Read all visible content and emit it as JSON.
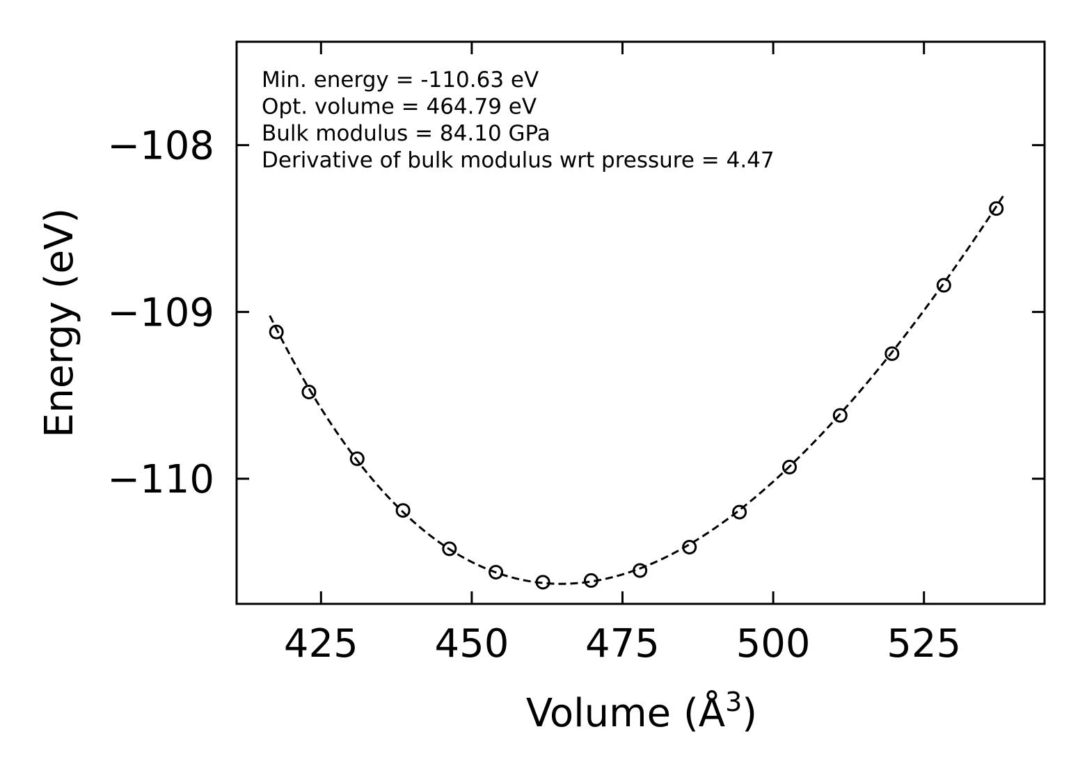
{
  "chart_data": {
    "type": "scatter",
    "xlabel": "Volume (Å",
    "xlabel_sup": "3",
    "xlabel_close": ")",
    "ylabel": "Energy (eV)",
    "xlim": [
      411,
      545
    ],
    "ylim": [
      -110.75,
      -107.38
    ],
    "xticks": [
      425,
      450,
      475,
      500,
      525
    ],
    "xtick_labels": [
      "425",
      "450",
      "475",
      "500",
      "525"
    ],
    "yticks": [
      -110,
      -109,
      -108
    ],
    "ytick_labels": [
      "−110",
      "−109",
      "−108"
    ],
    "grid": false,
    "color": "#000000",
    "annotations": [
      "Min. energy = -110.63 eV",
      "Opt. volume = 464.79 eV",
      "Bulk modulus = 84.10 GPa",
      "Derivative of bulk modulus wrt pressure = 4.47"
    ],
    "series": [
      {
        "marker": "open-circle",
        "x": [
          417.6,
          423.0,
          431.0,
          438.6,
          446.3,
          454.0,
          461.8,
          469.8,
          477.9,
          486.1,
          494.4,
          502.7,
          511.1,
          519.7,
          528.3,
          537.0
        ],
        "y": [
          -109.12,
          -109.48,
          -109.88,
          -110.19,
          -110.42,
          -110.56,
          -110.62,
          -110.61,
          -110.55,
          -110.41,
          -110.2,
          -109.93,
          -109.62,
          -109.25,
          -108.84,
          -108.38
        ]
      },
      {
        "line": "dashed",
        "fit": "birch-murnaghan",
        "E0": -110.63,
        "V0": 464.79,
        "B0_GPa": 84.1,
        "B0_prime": 4.47,
        "x_range": [
          416.5,
          538.3
        ]
      }
    ]
  }
}
